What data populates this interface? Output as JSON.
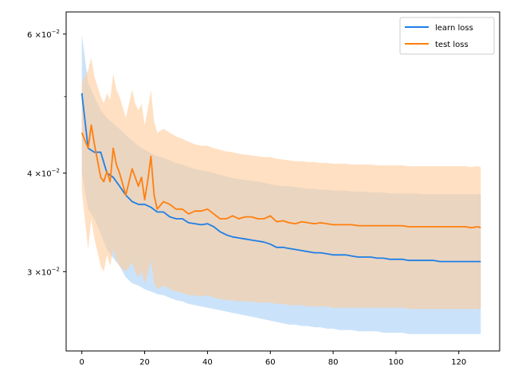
{
  "chart_data": {
    "type": "line",
    "title": "",
    "xlabel": "",
    "ylabel": "",
    "xlim": [
      -5,
      133
    ],
    "ylim": [
      0.0238,
      0.064
    ],
    "yscale": "log",
    "grid": false,
    "legend_position": "top-right",
    "x_ticks": [
      0,
      20,
      40,
      60,
      80,
      100,
      120
    ],
    "x_tick_labels": [
      "0",
      "20",
      "40",
      "60",
      "80",
      "100",
      "120"
    ],
    "y_ticks": [
      {
        "value": 0.03,
        "mantissa": "3",
        "exponent": "−2"
      },
      {
        "value": 0.04,
        "mantissa": "4",
        "exponent": "−2"
      },
      {
        "value": 0.06,
        "mantissa": "6",
        "exponent": "−2"
      }
    ],
    "y_times": "×10",
    "y_minor_ticks": [
      0.05
    ],
    "colors": {
      "learn": "#1f7fe6",
      "learn_band": "#a9d0f7",
      "test": "#ff7f0e",
      "test_band": "#ffcc99"
    },
    "series": [
      {
        "name": "learn loss",
        "key": "learn",
        "x": [
          0,
          2,
          4,
          6,
          8,
          10,
          12,
          14,
          16,
          18,
          20,
          22,
          24,
          26,
          28,
          30,
          32,
          34,
          36,
          38,
          40,
          42,
          44,
          46,
          48,
          50,
          52,
          54,
          56,
          58,
          60,
          62,
          64,
          66,
          68,
          70,
          72,
          74,
          76,
          78,
          80,
          82,
          84,
          86,
          88,
          90,
          92,
          94,
          96,
          98,
          100,
          102,
          104,
          106,
          108,
          110,
          112,
          114,
          116,
          118,
          120,
          122,
          124,
          126,
          127
        ],
        "y": [
          0.0505,
          0.043,
          0.0425,
          0.0425,
          0.04,
          0.0395,
          0.0385,
          0.0375,
          0.0368,
          0.0365,
          0.0365,
          0.0362,
          0.0357,
          0.0357,
          0.0352,
          0.035,
          0.035,
          0.0346,
          0.0345,
          0.0344,
          0.0345,
          0.0342,
          0.0337,
          0.0334,
          0.0332,
          0.0331,
          0.033,
          0.0329,
          0.0328,
          0.0327,
          0.0325,
          0.0322,
          0.0322,
          0.0321,
          0.032,
          0.0319,
          0.0318,
          0.0317,
          0.0317,
          0.0316,
          0.0315,
          0.0315,
          0.0315,
          0.0314,
          0.0313,
          0.0313,
          0.0313,
          0.0312,
          0.0312,
          0.0311,
          0.0311,
          0.0311,
          0.031,
          0.031,
          0.031,
          0.031,
          0.031,
          0.0309,
          0.0309,
          0.0309,
          0.0309,
          0.0309,
          0.0309,
          0.0309,
          0.0309
        ],
        "lower": [
          0.04,
          0.036,
          0.035,
          0.0335,
          0.032,
          0.0312,
          0.0305,
          0.0295,
          0.029,
          0.0288,
          0.0285,
          0.0283,
          0.0281,
          0.028,
          0.0278,
          0.0276,
          0.0275,
          0.0273,
          0.0272,
          0.0271,
          0.027,
          0.0269,
          0.0268,
          0.0267,
          0.0266,
          0.0265,
          0.0264,
          0.0263,
          0.0262,
          0.0261,
          0.026,
          0.0259,
          0.0258,
          0.0257,
          0.0257,
          0.0256,
          0.0256,
          0.0255,
          0.0255,
          0.0254,
          0.0254,
          0.0253,
          0.0253,
          0.0253,
          0.0252,
          0.0252,
          0.0252,
          0.0252,
          0.0251,
          0.0251,
          0.0251,
          0.0251,
          0.025,
          0.025,
          0.025,
          0.025,
          0.025,
          0.025,
          0.025,
          0.025,
          0.025,
          0.025,
          0.025,
          0.025,
          0.025
        ],
        "upper": [
          0.06,
          0.052,
          0.05,
          0.048,
          0.047,
          0.0462,
          0.0455,
          0.0447,
          0.044,
          0.0433,
          0.0428,
          0.0424,
          0.042,
          0.0418,
          0.0415,
          0.0412,
          0.041,
          0.0407,
          0.0405,
          0.0403,
          0.0402,
          0.04,
          0.0398,
          0.0396,
          0.0394,
          0.0393,
          0.0392,
          0.0391,
          0.039,
          0.0389,
          0.0387,
          0.0386,
          0.0385,
          0.0385,
          0.0384,
          0.0383,
          0.0382,
          0.0382,
          0.0381,
          0.0381,
          0.038,
          0.038,
          0.038,
          0.0379,
          0.0379,
          0.0379,
          0.0378,
          0.0378,
          0.0378,
          0.0377,
          0.0377,
          0.0377,
          0.0377,
          0.0377,
          0.0376,
          0.0376,
          0.0376,
          0.0376,
          0.0376,
          0.0376,
          0.0376,
          0.0376,
          0.0376,
          0.0376,
          0.0376
        ]
      },
      {
        "name": "test loss",
        "key": "test",
        "x": [
          0,
          2,
          3,
          4,
          6,
          7,
          8,
          9,
          10,
          11,
          12,
          14,
          16,
          17,
          18,
          19,
          20,
          21,
          22,
          23,
          24,
          26,
          28,
          30,
          32,
          34,
          36,
          38,
          40,
          42,
          44,
          46,
          48,
          50,
          52,
          54,
          56,
          58,
          60,
          62,
          64,
          66,
          68,
          70,
          72,
          74,
          76,
          78,
          80,
          82,
          84,
          86,
          88,
          90,
          92,
          94,
          96,
          98,
          100,
          102,
          104,
          106,
          108,
          110,
          112,
          114,
          116,
          118,
          120,
          122,
          124,
          126,
          127
        ],
        "y": [
          0.045,
          0.043,
          0.046,
          0.0435,
          0.0395,
          0.039,
          0.0402,
          0.039,
          0.043,
          0.041,
          0.04,
          0.0375,
          0.0405,
          0.0395,
          0.0385,
          0.0395,
          0.037,
          0.0392,
          0.042,
          0.0375,
          0.036,
          0.0368,
          0.0365,
          0.036,
          0.036,
          0.0355,
          0.0358,
          0.0358,
          0.036,
          0.0355,
          0.035,
          0.035,
          0.0353,
          0.035,
          0.0352,
          0.0352,
          0.035,
          0.035,
          0.0353,
          0.0347,
          0.0348,
          0.0346,
          0.0345,
          0.0347,
          0.0346,
          0.0345,
          0.0346,
          0.0345,
          0.0344,
          0.0344,
          0.0344,
          0.0344,
          0.0343,
          0.0343,
          0.0343,
          0.0343,
          0.0343,
          0.0343,
          0.0343,
          0.0343,
          0.0342,
          0.0342,
          0.0342,
          0.0342,
          0.0342,
          0.0342,
          0.0342,
          0.0342,
          0.0342,
          0.0342,
          0.0341,
          0.0342,
          0.0341
        ],
        "lower": [
          0.038,
          0.032,
          0.035,
          0.033,
          0.0305,
          0.03,
          0.0315,
          0.0305,
          0.032,
          0.031,
          0.0305,
          0.03,
          0.0308,
          0.03,
          0.0295,
          0.03,
          0.029,
          0.0298,
          0.031,
          0.029,
          0.0285,
          0.0288,
          0.0285,
          0.0283,
          0.0282,
          0.028,
          0.028,
          0.0279,
          0.028,
          0.0278,
          0.0277,
          0.0276,
          0.0276,
          0.0275,
          0.0275,
          0.0275,
          0.0274,
          0.0274,
          0.0274,
          0.0273,
          0.0273,
          0.0272,
          0.0272,
          0.0272,
          0.0271,
          0.0271,
          0.0271,
          0.0271,
          0.027,
          0.027,
          0.027,
          0.027,
          0.027,
          0.027,
          0.027,
          0.027,
          0.027,
          0.027,
          0.027,
          0.027,
          0.0269,
          0.0269,
          0.0269,
          0.0269,
          0.0269,
          0.0269,
          0.0269,
          0.0269,
          0.0269,
          0.0269,
          0.0269,
          0.0269,
          0.0269
        ],
        "upper": [
          0.052,
          0.054,
          0.056,
          0.053,
          0.05,
          0.049,
          0.0505,
          0.0495,
          0.0535,
          0.051,
          0.05,
          0.047,
          0.051,
          0.049,
          0.048,
          0.049,
          0.046,
          0.0482,
          0.051,
          0.0465,
          0.045,
          0.0455,
          0.045,
          0.0445,
          0.0442,
          0.0438,
          0.0435,
          0.0433,
          0.0433,
          0.043,
          0.0428,
          0.0426,
          0.0425,
          0.0423,
          0.0422,
          0.0421,
          0.042,
          0.0419,
          0.0419,
          0.0417,
          0.0416,
          0.0415,
          0.0414,
          0.0414,
          0.0413,
          0.0413,
          0.0412,
          0.0412,
          0.0411,
          0.0411,
          0.0411,
          0.041,
          0.041,
          0.041,
          0.041,
          0.0409,
          0.0409,
          0.0409,
          0.0409,
          0.0409,
          0.0408,
          0.0408,
          0.0408,
          0.0408,
          0.0408,
          0.0408,
          0.0408,
          0.0408,
          0.0408,
          0.0408,
          0.0407,
          0.0408,
          0.0407
        ]
      }
    ]
  }
}
